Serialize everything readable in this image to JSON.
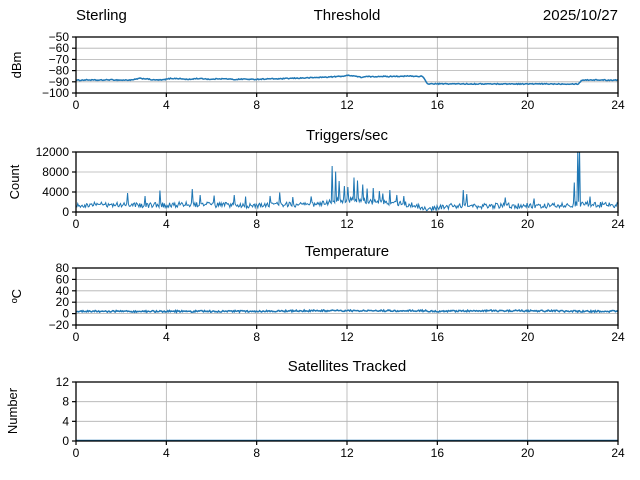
{
  "figure": {
    "background": "#ffffff",
    "line_color": "#1f77b4",
    "grid_color": "#b0b0b0",
    "spine_color": "#000000"
  },
  "chart_data": [
    {
      "type": "line",
      "title": "Threshold",
      "title_left": "Sterling",
      "title_right": "2025/10/27",
      "xlabel": "",
      "ylabel": "dBm",
      "xlim": [
        0,
        24
      ],
      "ylim": [
        -100,
        -50
      ],
      "xticks": [
        0,
        4,
        8,
        12,
        16,
        20,
        24
      ],
      "yticks": [
        -100,
        -90,
        -80,
        -70,
        -60,
        -50
      ],
      "grid": true,
      "legend": "none",
      "series": [
        {
          "name": "threshold_dbm",
          "noise": 0.4,
          "keypoints": [
            [
              0,
              -88.7
            ],
            [
              0.5,
              -88.3
            ],
            [
              1,
              -88.6
            ],
            [
              1.5,
              -88.2
            ],
            [
              2,
              -88.5
            ],
            [
              2.5,
              -88.4
            ],
            [
              2.8,
              -87.0
            ],
            [
              3.1,
              -87.3
            ],
            [
              3.4,
              -88.3
            ],
            [
              3.8,
              -88.4
            ],
            [
              4.2,
              -87.0
            ],
            [
              4.6,
              -87.2
            ],
            [
              5,
              -88.0
            ],
            [
              5.3,
              -87.1
            ],
            [
              5.7,
              -87.3
            ],
            [
              6,
              -87.9
            ],
            [
              6.3,
              -87.2
            ],
            [
              6.7,
              -87.4
            ],
            [
              7,
              -88.0
            ],
            [
              7.4,
              -87.5
            ],
            [
              7.8,
              -87.9
            ],
            [
              8.2,
              -87.6
            ],
            [
              8.6,
              -87.3
            ],
            [
              9,
              -87.4
            ],
            [
              9.4,
              -87.0
            ],
            [
              9.8,
              -86.8
            ],
            [
              10.2,
              -86.5
            ],
            [
              10.6,
              -86.2
            ],
            [
              11,
              -85.9
            ],
            [
              11.4,
              -85.5
            ],
            [
              11.8,
              -85.0
            ],
            [
              12.1,
              -84.2
            ],
            [
              12.4,
              -85.0
            ],
            [
              12.6,
              -86.0
            ],
            [
              12.9,
              -85.3
            ],
            [
              13.2,
              -85.5
            ],
            [
              13.5,
              -85.0
            ],
            [
              13.8,
              -85.4
            ],
            [
              14.1,
              -84.9
            ],
            [
              14.4,
              -85.3
            ],
            [
              14.7,
              -84.8
            ],
            [
              15,
              -85.1
            ],
            [
              15.35,
              -85.1
            ],
            [
              15.55,
              -91.8
            ],
            [
              18,
              -91.9
            ],
            [
              20,
              -91.9
            ],
            [
              22.25,
              -91.9
            ],
            [
              22.4,
              -88.4
            ],
            [
              23,
              -88.3
            ],
            [
              23.5,
              -88.5
            ],
            [
              24,
              -88.4
            ]
          ],
          "spikes": []
        }
      ]
    },
    {
      "type": "line",
      "title": "Triggers/sec",
      "xlabel": "",
      "ylabel": "Count",
      "xlim": [
        0,
        24
      ],
      "ylim": [
        0,
        12000
      ],
      "xticks": [
        0,
        4,
        8,
        12,
        16,
        20,
        24
      ],
      "yticks": [
        0,
        4000,
        8000,
        12000
      ],
      "grid": true,
      "legend": "none",
      "series": [
        {
          "name": "triggers_per_sec",
          "noise": 550,
          "min": 250,
          "keypoints": [
            [
              0,
              1400
            ],
            [
              1,
              1500
            ],
            [
              2,
              1450
            ],
            [
              3,
              1400
            ],
            [
              4,
              1350
            ],
            [
              5,
              1600
            ],
            [
              6,
              1400
            ],
            [
              7,
              1350
            ],
            [
              8,
              1300
            ],
            [
              9,
              1500
            ],
            [
              10,
              1350
            ],
            [
              11,
              1700
            ],
            [
              11.5,
              2400
            ],
            [
              12,
              2300
            ],
            [
              12.5,
              2400
            ],
            [
              13,
              2100
            ],
            [
              13.5,
              1900
            ],
            [
              14,
              1700
            ],
            [
              14.5,
              1600
            ],
            [
              15,
              1300
            ],
            [
              15.4,
              900
            ],
            [
              15.7,
              650
            ],
            [
              16,
              750
            ],
            [
              16.5,
              1100
            ],
            [
              17,
              1400
            ],
            [
              17.5,
              1300
            ],
            [
              18,
              1150
            ],
            [
              18.5,
              1200
            ],
            [
              19,
              1300
            ],
            [
              19.5,
              1200
            ],
            [
              20,
              1300
            ],
            [
              20.5,
              1250
            ],
            [
              21,
              1300
            ],
            [
              21.5,
              1350
            ],
            [
              22,
              1500
            ],
            [
              22.5,
              1700
            ],
            [
              23,
              1500
            ],
            [
              23.5,
              1450
            ],
            [
              24,
              1400
            ]
          ],
          "spikes": [
            [
              2.3,
              3800
            ],
            [
              3.05,
              3200
            ],
            [
              3.7,
              4300
            ],
            [
              5.15,
              4600
            ],
            [
              5.5,
              3400
            ],
            [
              6.1,
              3300
            ],
            [
              7.0,
              3400
            ],
            [
              7.5,
              3100
            ],
            [
              8.6,
              3200
            ],
            [
              9.0,
              3900
            ],
            [
              9.6,
              3000
            ],
            [
              10.4,
              3100
            ],
            [
              11.35,
              9200
            ],
            [
              11.5,
              8100
            ],
            [
              11.65,
              6200
            ],
            [
              11.9,
              5200
            ],
            [
              12.05,
              5000
            ],
            [
              12.3,
              6900
            ],
            [
              12.45,
              6300
            ],
            [
              12.7,
              5500
            ],
            [
              12.9,
              4700
            ],
            [
              13.15,
              4800
            ],
            [
              13.45,
              4200
            ],
            [
              13.6,
              3700
            ],
            [
              13.9,
              4400
            ],
            [
              14.2,
              3400
            ],
            [
              14.5,
              3200
            ],
            [
              17.15,
              4400
            ],
            [
              17.3,
              3600
            ],
            [
              19.0,
              2900
            ],
            [
              20.3,
              2700
            ],
            [
              22.05,
              5900
            ],
            [
              22.2,
              12600
            ],
            [
              22.3,
              12500
            ],
            [
              22.75,
              3100
            ]
          ]
        }
      ]
    },
    {
      "type": "line",
      "title": "Temperature",
      "xlabel": "",
      "ylabel": "ºC",
      "xlim": [
        0,
        24
      ],
      "ylim": [
        -20,
        80
      ],
      "xticks": [
        0,
        4,
        8,
        12,
        16,
        20,
        24
      ],
      "yticks": [
        -20,
        0,
        20,
        40,
        60,
        80
      ],
      "grid": true,
      "legend": "none",
      "series": [
        {
          "name": "temperature_c",
          "noise": 1.5,
          "keypoints": [
            [
              0,
              4
            ],
            [
              4,
              4
            ],
            [
              8,
              4
            ],
            [
              9.5,
              4.5
            ],
            [
              10.5,
              5
            ],
            [
              12,
              5
            ],
            [
              13,
              4.5
            ],
            [
              13.6,
              5
            ],
            [
              15.3,
              5
            ],
            [
              16,
              4
            ],
            [
              17.8,
              5
            ],
            [
              19.5,
              5
            ],
            [
              21.4,
              4.5
            ],
            [
              22,
              4
            ],
            [
              24,
              4
            ]
          ],
          "spikes": []
        }
      ]
    },
    {
      "type": "line",
      "title": "Satellites Tracked",
      "xlabel": "",
      "ylabel": "Number",
      "xlim": [
        0,
        24
      ],
      "ylim": [
        0,
        12
      ],
      "xticks": [
        0,
        4,
        8,
        12,
        16,
        20,
        24
      ],
      "yticks": [
        0,
        4,
        8,
        12
      ],
      "grid": true,
      "legend": "none",
      "series": [
        {
          "name": "satellites_tracked",
          "noise": 0,
          "keypoints": [
            [
              0,
              0.1
            ],
            [
              24,
              0.1
            ]
          ],
          "spikes": []
        }
      ]
    }
  ]
}
